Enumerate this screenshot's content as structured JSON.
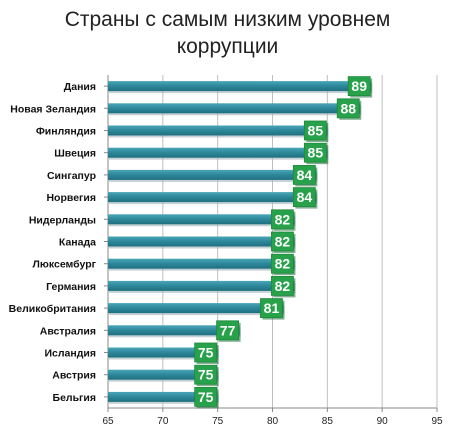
{
  "chart_data": {
    "type": "bar",
    "orientation": "horizontal",
    "title_lines": [
      "Страны с самым низким уровнем",
      "коррупции"
    ],
    "categories": [
      "Дания",
      "Новая Зеландия",
      "Финляндия",
      "Швеция",
      "Сингапур",
      "Норвегия",
      "Нидерланды",
      "Канада",
      "Люксембург",
      "Германия",
      "Великобритания",
      "Австралия",
      "Исландия",
      "Австрия",
      "Бельгия"
    ],
    "values": [
      89,
      88,
      85,
      85,
      84,
      84,
      82,
      82,
      82,
      82,
      81,
      77,
      75,
      75,
      75
    ],
    "xlim": [
      65,
      95
    ],
    "xticks": [
      65,
      70,
      75,
      80,
      85,
      90,
      95
    ],
    "grid": "vertical",
    "bar_color": "#2e8a9c",
    "label_color": "#27a24a",
    "legend": "none"
  }
}
